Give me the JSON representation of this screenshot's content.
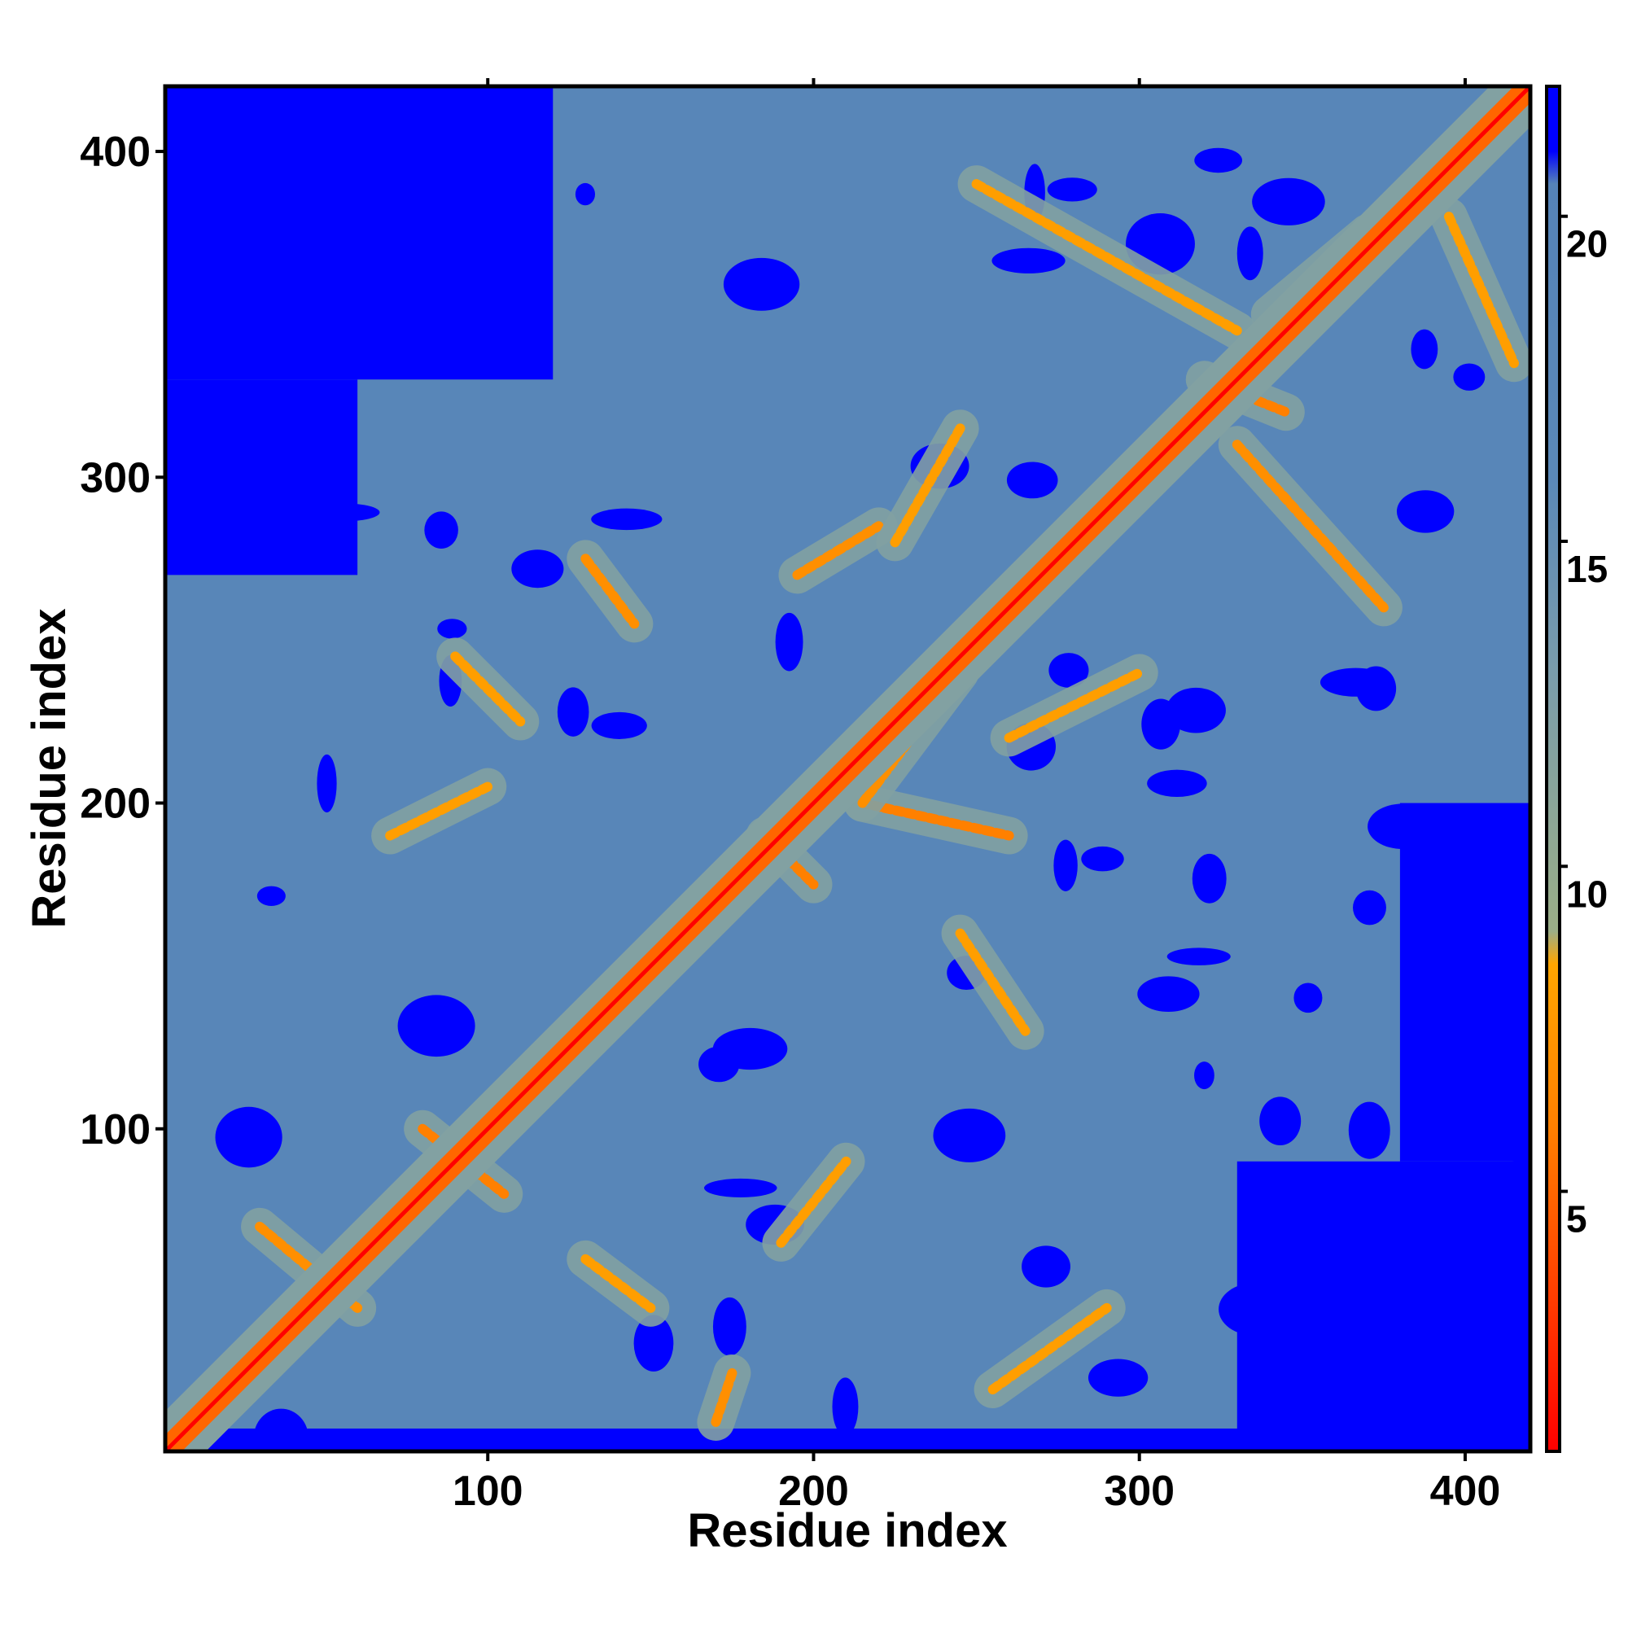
{
  "chart_data": {
    "type": "heatmap",
    "title": "",
    "xlabel": "Residue index",
    "ylabel": "Residue index",
    "xlim": [
      1,
      420
    ],
    "ylim": [
      1,
      420
    ],
    "x_ticks": [
      100,
      200,
      300,
      400
    ],
    "y_ticks": [
      100,
      200,
      300,
      400
    ],
    "x_top_ticks": [
      100,
      200,
      300,
      400
    ],
    "x_tick_labels": [
      "100",
      "200",
      "300",
      "400"
    ],
    "y_tick_labels": [
      "100",
      "200",
      "300",
      "400"
    ],
    "colorbar": {
      "range": [
        1,
        22
      ],
      "ticks": [
        5,
        10,
        15,
        20
      ],
      "tick_labels": [
        "5",
        "10",
        "15",
        "20"
      ],
      "stops": [
        {
          "value": 1,
          "color": "#ff0000"
        },
        {
          "value": 6,
          "color": "#ff8000"
        },
        {
          "value": 8.5,
          "color": "#ffa500"
        },
        {
          "value": 9,
          "color": "#9bae87"
        },
        {
          "value": 13,
          "color": "#7a9cab"
        },
        {
          "value": 16,
          "color": "#5a88b8"
        },
        {
          "value": 20.5,
          "color": "#5583b8"
        },
        {
          "value": 21,
          "color": "#0000ff"
        }
      ]
    },
    "background_value": 18,
    "far_value": 22,
    "diagonal_band_width": 8,
    "secondary_contacts": [
      {
        "from": [
          80,
          100
        ],
        "to": [
          105,
          80
        ],
        "value": 6
      },
      {
        "from": [
          30,
          70
        ],
        "to": [
          60,
          45
        ],
        "value": 7
      },
      {
        "from": [
          185,
          190
        ],
        "to": [
          200,
          175
        ],
        "value": 6
      },
      {
        "from": [
          215,
          200
        ],
        "to": [
          260,
          190
        ],
        "value": 6
      },
      {
        "from": [
          215,
          200
        ],
        "to": [
          245,
          240
        ],
        "value": 7
      },
      {
        "from": [
          195,
          270
        ],
        "to": [
          220,
          285
        ],
        "value": 7
      },
      {
        "from": [
          225,
          280
        ],
        "to": [
          245,
          315
        ],
        "value": 8
      },
      {
        "from": [
          320,
          330
        ],
        "to": [
          345,
          320
        ],
        "value": 6
      },
      {
        "from": [
          330,
          310
        ],
        "to": [
          375,
          260
        ],
        "value": 7
      },
      {
        "from": [
          340,
          350
        ],
        "to": [
          370,
          375
        ],
        "value": 7
      },
      {
        "from": [
          250,
          390
        ],
        "to": [
          330,
          345
        ],
        "value": 8
      },
      {
        "from": [
          260,
          220
        ],
        "to": [
          300,
          240
        ],
        "value": 8
      },
      {
        "from": [
          130,
          275
        ],
        "to": [
          145,
          255
        ],
        "value": 7
      },
      {
        "from": [
          90,
          245
        ],
        "to": [
          110,
          225
        ],
        "value": 8
      },
      {
        "from": [
          70,
          190
        ],
        "to": [
          100,
          205
        ],
        "value": 8
      },
      {
        "from": [
          190,
          65
        ],
        "to": [
          210,
          90
        ],
        "value": 8
      },
      {
        "from": [
          245,
          160
        ],
        "to": [
          265,
          130
        ],
        "value": 8
      },
      {
        "from": [
          255,
          20
        ],
        "to": [
          290,
          45
        ],
        "value": 8
      },
      {
        "from": [
          130,
          60
        ],
        "to": [
          150,
          45
        ],
        "value": 8
      },
      {
        "from": [
          170,
          10
        ],
        "to": [
          175,
          25
        ],
        "value": 7
      },
      {
        "from": [
          395,
          380
        ],
        "to": [
          415,
          335
        ],
        "value": 8
      }
    ],
    "far_regions": [
      {
        "x": [
          1,
          120
        ],
        "y": [
          330,
          420
        ]
      },
      {
        "x": [
          1,
          60
        ],
        "y": [
          270,
          330
        ]
      },
      {
        "x": [
          330,
          420
        ],
        "y": [
          1,
          90
        ]
      },
      {
        "x": [
          380,
          420
        ],
        "y": [
          90,
          200
        ]
      },
      {
        "x": [
          1,
          420
        ],
        "y": [
          1,
          8
        ]
      }
    ]
  }
}
